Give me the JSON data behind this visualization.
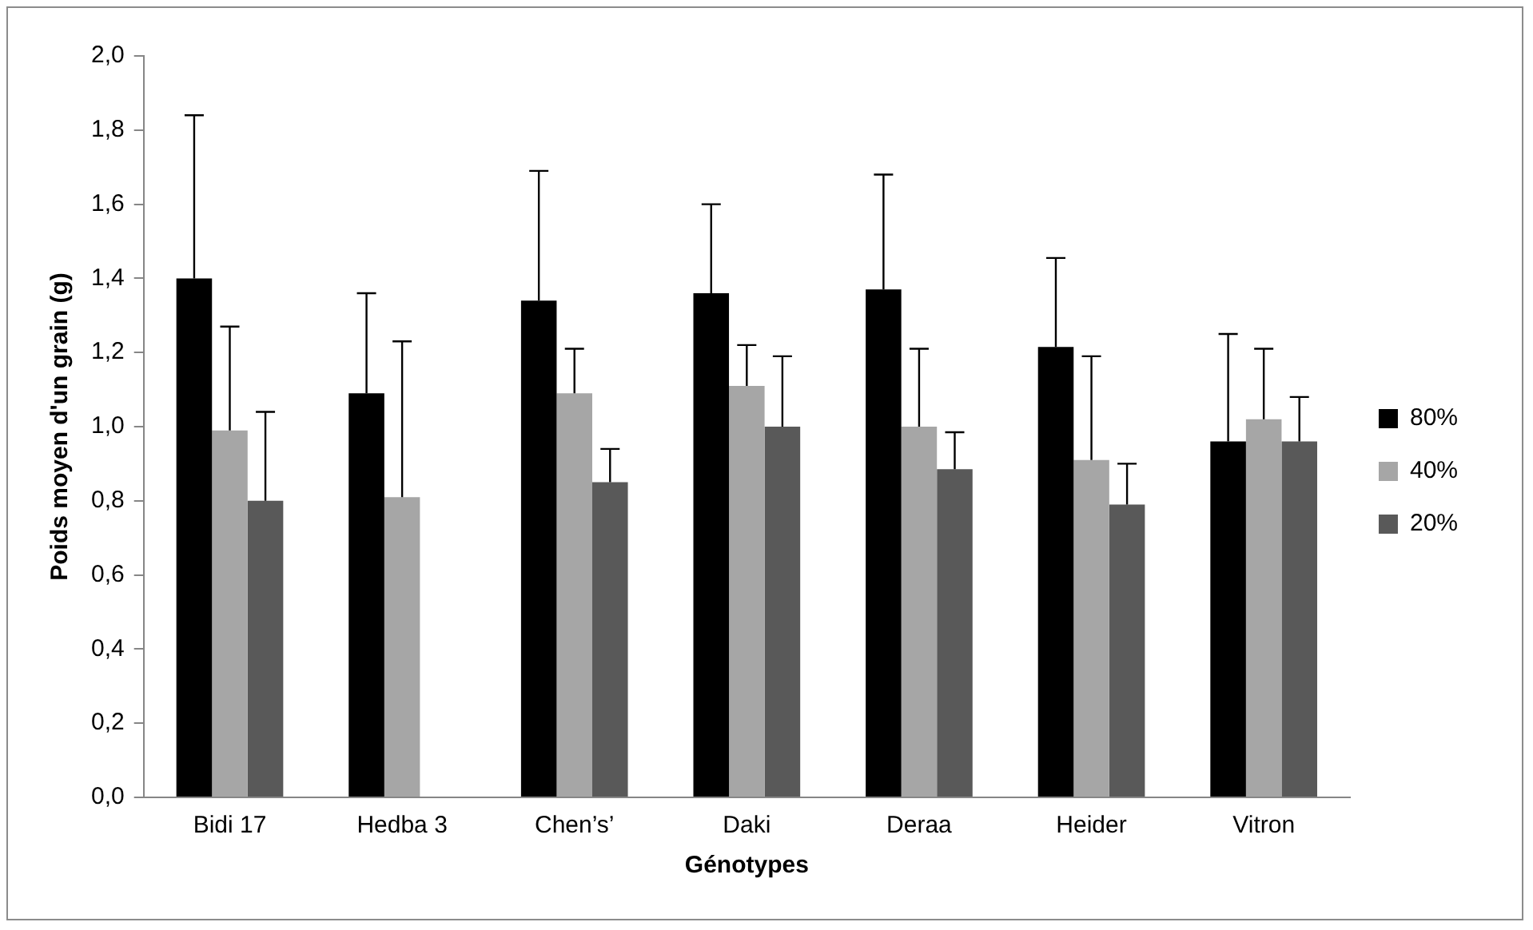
{
  "chart_data": {
    "type": "bar",
    "xlabel": "Génotypes",
    "ylabel": "Poids moyen d'un grain (g)",
    "categories": [
      "Bidi 17",
      "Hedba 3",
      "Chen’s’",
      "Daki",
      "Deraa",
      "Heider",
      "Vitron"
    ],
    "series": [
      {
        "name": "80%",
        "color": "#000000",
        "values": [
          1.4,
          1.09,
          1.34,
          1.36,
          1.37,
          1.215,
          0.96
        ],
        "errors": [
          [
            1.4,
            1.84
          ],
          [
            1.09,
            1.36
          ],
          [
            1.34,
            1.69
          ],
          [
            1.36,
            1.6
          ],
          [
            1.37,
            1.68
          ],
          [
            1.215,
            1.455
          ],
          [
            0.96,
            1.25
          ]
        ]
      },
      {
        "name": "40%",
        "color": "#a6a6a6",
        "values": [
          0.99,
          0.81,
          1.09,
          1.11,
          1.0,
          0.91,
          1.02
        ],
        "errors": [
          [
            0.99,
            1.27
          ],
          [
            0.81,
            1.23
          ],
          [
            1.09,
            1.21
          ],
          [
            1.11,
            1.22
          ],
          [
            1.0,
            1.21
          ],
          [
            0.91,
            1.19
          ],
          [
            1.02,
            1.21
          ]
        ]
      },
      {
        "name": "20%",
        "color": "#595959",
        "values": [
          0.8,
          0,
          0.85,
          1.0,
          0.885,
          0.79,
          0.96
        ],
        "errors": [
          [
            0.8,
            1.04
          ],
          null,
          [
            0.85,
            0.94
          ],
          [
            1.0,
            1.19
          ],
          [
            0.885,
            0.985
          ],
          [
            0.79,
            0.9
          ],
          [
            0.96,
            1.08
          ]
        ]
      }
    ],
    "ylim": [
      0,
      2
    ],
    "yticks": [
      {
        "value": 0,
        "label": "0,0"
      },
      {
        "value": 0.2,
        "label": "0,2"
      },
      {
        "value": 0.4,
        "label": "0,4"
      },
      {
        "value": 0.6,
        "label": "0,6"
      },
      {
        "value": 0.8,
        "label": "0,8"
      },
      {
        "value": 1,
        "label": "1,0"
      },
      {
        "value": 1.2,
        "label": "1,2"
      },
      {
        "value": 1.4,
        "label": "1,4"
      },
      {
        "value": 1.6,
        "label": "1,6"
      },
      {
        "value": 1.8,
        "label": "1,8"
      },
      {
        "value": 2,
        "label": "2,0"
      }
    ],
    "grid": false,
    "legend": "right"
  }
}
